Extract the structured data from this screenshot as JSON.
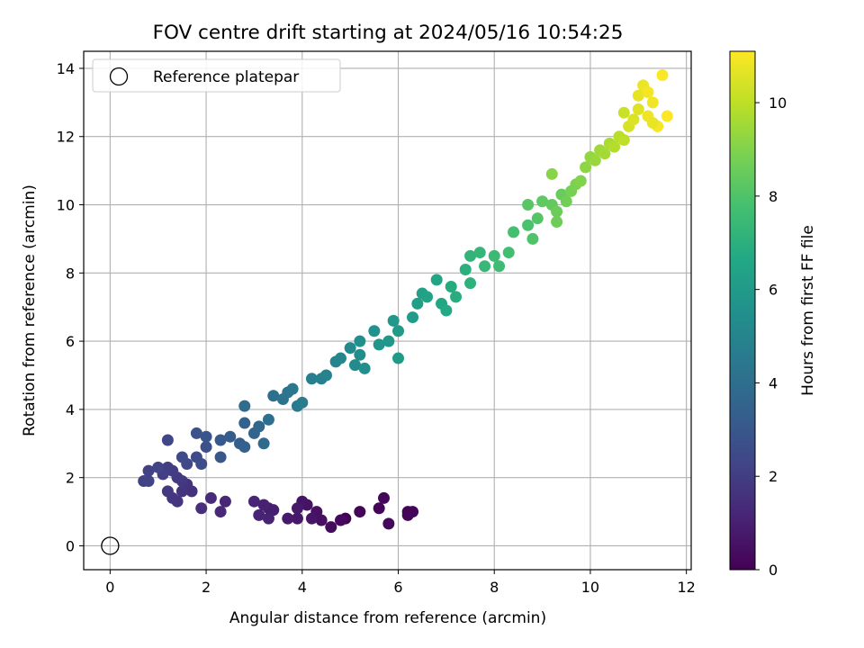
{
  "chart_data": {
    "type": "scatter",
    "title": "FOV centre drift starting at 2024/05/16 10:54:25",
    "xlabel": "Angular distance from reference (arcmin)",
    "ylabel": "Rotation from reference (arcmin)",
    "xlim": [
      -0.55,
      12.1
    ],
    "ylim": [
      -0.7,
      14.5
    ],
    "xticks": [
      0,
      2,
      4,
      6,
      8,
      10,
      12
    ],
    "yticks": [
      0,
      2,
      4,
      6,
      8,
      10,
      12,
      14
    ],
    "grid": true,
    "legend": {
      "position": "top-left",
      "entries": [
        "Reference platepar"
      ]
    },
    "reference_point": {
      "x": 0,
      "y": 0
    },
    "colorbar": {
      "label": "Hours from first FF file",
      "colormap": "viridis",
      "range": [
        0,
        11.1
      ],
      "ticks": [
        0,
        2,
        4,
        6,
        8,
        10
      ]
    },
    "points": [
      {
        "x": 4.9,
        "y": 0.8,
        "t": 0.0
      },
      {
        "x": 5.2,
        "y": 1.0,
        "t": 0.1
      },
      {
        "x": 5.6,
        "y": 1.1,
        "t": 0.15
      },
      {
        "x": 5.7,
        "y": 1.4,
        "t": 0.2
      },
      {
        "x": 5.8,
        "y": 0.65,
        "t": 0.25
      },
      {
        "x": 6.2,
        "y": 1.0,
        "t": 0.05
      },
      {
        "x": 6.3,
        "y": 1.0,
        "t": 0.1
      },
      {
        "x": 6.2,
        "y": 0.9,
        "t": 0.15
      },
      {
        "x": 4.8,
        "y": 0.75,
        "t": 0.3
      },
      {
        "x": 4.6,
        "y": 0.55,
        "t": 0.35
      },
      {
        "x": 4.4,
        "y": 0.75,
        "t": 0.45
      },
      {
        "x": 4.3,
        "y": 1.0,
        "t": 0.5
      },
      {
        "x": 4.1,
        "y": 1.2,
        "t": 0.55
      },
      {
        "x": 4.0,
        "y": 1.3,
        "t": 0.6
      },
      {
        "x": 4.2,
        "y": 0.8,
        "t": 0.65
      },
      {
        "x": 3.9,
        "y": 0.8,
        "t": 0.7
      },
      {
        "x": 3.9,
        "y": 1.1,
        "t": 0.75
      },
      {
        "x": 3.7,
        "y": 0.8,
        "t": 0.8
      },
      {
        "x": 3.3,
        "y": 1.1,
        "t": 0.9
      },
      {
        "x": 3.4,
        "y": 1.05,
        "t": 0.95
      },
      {
        "x": 3.2,
        "y": 1.2,
        "t": 1.0
      },
      {
        "x": 3.3,
        "y": 0.8,
        "t": 1.05
      },
      {
        "x": 3.1,
        "y": 0.9,
        "t": 1.1
      },
      {
        "x": 3.0,
        "y": 1.3,
        "t": 1.15
      },
      {
        "x": 2.4,
        "y": 1.3,
        "t": 1.2
      },
      {
        "x": 2.3,
        "y": 1.0,
        "t": 1.3
      },
      {
        "x": 2.1,
        "y": 1.4,
        "t": 1.4
      },
      {
        "x": 1.9,
        "y": 1.1,
        "t": 1.5
      },
      {
        "x": 1.7,
        "y": 1.6,
        "t": 1.55
      },
      {
        "x": 1.6,
        "y": 1.8,
        "t": 1.6
      },
      {
        "x": 1.5,
        "y": 1.6,
        "t": 1.65
      },
      {
        "x": 1.4,
        "y": 1.3,
        "t": 1.7
      },
      {
        "x": 1.3,
        "y": 1.4,
        "t": 1.75
      },
      {
        "x": 1.2,
        "y": 1.6,
        "t": 1.8
      },
      {
        "x": 1.5,
        "y": 1.9,
        "t": 1.85
      },
      {
        "x": 1.4,
        "y": 2.0,
        "t": 1.9
      },
      {
        "x": 1.3,
        "y": 2.2,
        "t": 1.95
      },
      {
        "x": 1.2,
        "y": 2.3,
        "t": 2.0
      },
      {
        "x": 1.1,
        "y": 2.1,
        "t": 2.05
      },
      {
        "x": 0.8,
        "y": 2.2,
        "t": 2.1
      },
      {
        "x": 0.7,
        "y": 1.9,
        "t": 2.15
      },
      {
        "x": 0.8,
        "y": 1.9,
        "t": 2.2
      },
      {
        "x": 1.0,
        "y": 2.3,
        "t": 2.25
      },
      {
        "x": 1.2,
        "y": 3.1,
        "t": 2.3
      },
      {
        "x": 1.6,
        "y": 2.4,
        "t": 2.4
      },
      {
        "x": 1.5,
        "y": 2.6,
        "t": 2.45
      },
      {
        "x": 1.8,
        "y": 2.6,
        "t": 2.5
      },
      {
        "x": 1.9,
        "y": 2.4,
        "t": 2.6
      },
      {
        "x": 2.0,
        "y": 2.9,
        "t": 2.7
      },
      {
        "x": 1.8,
        "y": 3.3,
        "t": 2.8
      },
      {
        "x": 2.0,
        "y": 3.2,
        "t": 2.9
      },
      {
        "x": 2.3,
        "y": 2.6,
        "t": 3.0
      },
      {
        "x": 2.3,
        "y": 3.1,
        "t": 3.1
      },
      {
        "x": 2.5,
        "y": 3.2,
        "t": 3.2
      },
      {
        "x": 2.7,
        "y": 3.0,
        "t": 3.3
      },
      {
        "x": 2.8,
        "y": 2.9,
        "t": 3.4
      },
      {
        "x": 2.8,
        "y": 3.6,
        "t": 3.5
      },
      {
        "x": 3.0,
        "y": 3.3,
        "t": 3.6
      },
      {
        "x": 3.1,
        "y": 3.5,
        "t": 3.7
      },
      {
        "x": 3.2,
        "y": 3.0,
        "t": 3.8
      },
      {
        "x": 2.8,
        "y": 4.1,
        "t": 3.9
      },
      {
        "x": 3.3,
        "y": 3.7,
        "t": 4.0
      },
      {
        "x": 3.4,
        "y": 4.4,
        "t": 4.1
      },
      {
        "x": 3.6,
        "y": 4.3,
        "t": 4.2
      },
      {
        "x": 3.7,
        "y": 4.5,
        "t": 4.3
      },
      {
        "x": 3.8,
        "y": 4.6,
        "t": 4.4
      },
      {
        "x": 3.9,
        "y": 4.1,
        "t": 4.5
      },
      {
        "x": 4.0,
        "y": 4.2,
        "t": 4.6
      },
      {
        "x": 4.2,
        "y": 4.9,
        "t": 4.7
      },
      {
        "x": 4.4,
        "y": 4.9,
        "t": 4.8
      },
      {
        "x": 4.5,
        "y": 5.0,
        "t": 4.9
      },
      {
        "x": 4.7,
        "y": 5.4,
        "t": 5.0
      },
      {
        "x": 4.8,
        "y": 5.5,
        "t": 5.1
      },
      {
        "x": 5.0,
        "y": 5.8,
        "t": 5.2
      },
      {
        "x": 5.1,
        "y": 5.3,
        "t": 5.3
      },
      {
        "x": 5.2,
        "y": 5.6,
        "t": 5.4
      },
      {
        "x": 5.3,
        "y": 5.2,
        "t": 5.45
      },
      {
        "x": 5.2,
        "y": 6.0,
        "t": 5.5
      },
      {
        "x": 5.5,
        "y": 6.3,
        "t": 5.6
      },
      {
        "x": 5.6,
        "y": 5.9,
        "t": 5.7
      },
      {
        "x": 5.8,
        "y": 6.0,
        "t": 5.8
      },
      {
        "x": 5.9,
        "y": 6.6,
        "t": 5.9
      },
      {
        "x": 6.0,
        "y": 6.3,
        "t": 6.0
      },
      {
        "x": 6.0,
        "y": 5.5,
        "t": 6.05
      },
      {
        "x": 6.3,
        "y": 6.7,
        "t": 6.1
      },
      {
        "x": 6.4,
        "y": 7.1,
        "t": 6.2
      },
      {
        "x": 6.5,
        "y": 7.4,
        "t": 6.3
      },
      {
        "x": 6.6,
        "y": 7.3,
        "t": 6.4
      },
      {
        "x": 6.8,
        "y": 7.8,
        "t": 6.5
      },
      {
        "x": 6.9,
        "y": 7.1,
        "t": 6.6
      },
      {
        "x": 7.0,
        "y": 6.9,
        "t": 6.7
      },
      {
        "x": 7.1,
        "y": 7.6,
        "t": 6.8
      },
      {
        "x": 7.2,
        "y": 7.3,
        "t": 6.9
      },
      {
        "x": 7.4,
        "y": 8.1,
        "t": 7.0
      },
      {
        "x": 7.5,
        "y": 7.7,
        "t": 7.1
      },
      {
        "x": 7.5,
        "y": 8.5,
        "t": 7.2
      },
      {
        "x": 7.7,
        "y": 8.6,
        "t": 7.3
      },
      {
        "x": 7.8,
        "y": 8.2,
        "t": 7.4
      },
      {
        "x": 8.0,
        "y": 8.5,
        "t": 7.5
      },
      {
        "x": 8.1,
        "y": 8.2,
        "t": 7.6
      },
      {
        "x": 8.3,
        "y": 8.6,
        "t": 7.7
      },
      {
        "x": 8.4,
        "y": 9.2,
        "t": 7.8
      },
      {
        "x": 8.7,
        "y": 9.4,
        "t": 7.9
      },
      {
        "x": 8.8,
        "y": 9.0,
        "t": 8.0
      },
      {
        "x": 8.9,
        "y": 9.6,
        "t": 8.1
      },
      {
        "x": 8.7,
        "y": 10.0,
        "t": 8.2
      },
      {
        "x": 9.0,
        "y": 10.1,
        "t": 8.3
      },
      {
        "x": 9.2,
        "y": 10.0,
        "t": 8.4
      },
      {
        "x": 9.4,
        "y": 10.3,
        "t": 8.5
      },
      {
        "x": 9.3,
        "y": 9.8,
        "t": 8.6
      },
      {
        "x": 9.5,
        "y": 10.1,
        "t": 8.7
      },
      {
        "x": 9.6,
        "y": 10.4,
        "t": 8.8
      },
      {
        "x": 9.7,
        "y": 10.6,
        "t": 8.9
      },
      {
        "x": 9.8,
        "y": 10.7,
        "t": 9.0
      },
      {
        "x": 9.3,
        "y": 9.5,
        "t": 8.65
      },
      {
        "x": 9.2,
        "y": 10.9,
        "t": 9.1
      },
      {
        "x": 9.9,
        "y": 11.1,
        "t": 9.2
      },
      {
        "x": 10.0,
        "y": 11.4,
        "t": 9.3
      },
      {
        "x": 10.1,
        "y": 11.3,
        "t": 9.4
      },
      {
        "x": 10.2,
        "y": 11.6,
        "t": 9.5
      },
      {
        "x": 10.3,
        "y": 11.5,
        "t": 9.6
      },
      {
        "x": 10.4,
        "y": 11.8,
        "t": 9.7
      },
      {
        "x": 10.5,
        "y": 11.7,
        "t": 9.8
      },
      {
        "x": 10.6,
        "y": 12.0,
        "t": 9.9
      },
      {
        "x": 10.7,
        "y": 11.9,
        "t": 10.0
      },
      {
        "x": 10.7,
        "y": 12.7,
        "t": 10.2
      },
      {
        "x": 10.8,
        "y": 12.3,
        "t": 10.4
      },
      {
        "x": 10.9,
        "y": 12.5,
        "t": 10.5
      },
      {
        "x": 11.0,
        "y": 12.8,
        "t": 10.6
      },
      {
        "x": 11.0,
        "y": 13.2,
        "t": 10.7
      },
      {
        "x": 11.1,
        "y": 13.5,
        "t": 10.8
      },
      {
        "x": 11.2,
        "y": 12.6,
        "t": 10.85
      },
      {
        "x": 11.3,
        "y": 13.0,
        "t": 10.9
      },
      {
        "x": 11.4,
        "y": 12.3,
        "t": 11.0
      },
      {
        "x": 11.5,
        "y": 13.8,
        "t": 11.05
      },
      {
        "x": 11.6,
        "y": 12.6,
        "t": 11.1
      },
      {
        "x": 11.2,
        "y": 13.3,
        "t": 10.95
      },
      {
        "x": 11.3,
        "y": 12.4,
        "t": 10.75
      }
    ]
  }
}
